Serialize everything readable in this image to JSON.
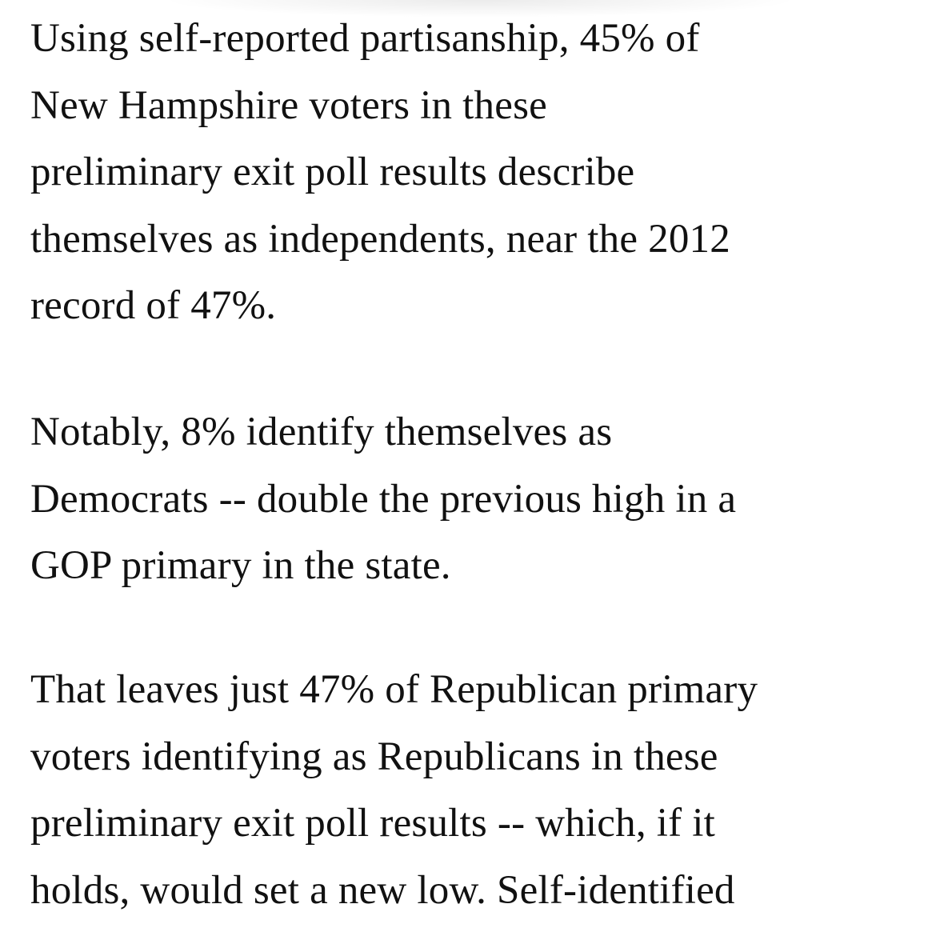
{
  "paragraphs": [
    {
      "lines": [
        "Using self-reported partisanship, 45% of",
        "New Hampshire voters in these",
        "preliminary exit poll results describe",
        "themselves as independents, near the 2012",
        "record of 47%."
      ]
    },
    {
      "lines": [
        "Notably, 8% identify themselves as",
        "Democrats -- double the previous high in a",
        "GOP primary in the state."
      ]
    },
    {
      "lines": [
        "That leaves just 47% of Republican primary",
        "voters identifying as Republicans in these",
        "preliminary exit poll results -- which, if it",
        "holds, would set a new low. Self-identified"
      ]
    }
  ]
}
